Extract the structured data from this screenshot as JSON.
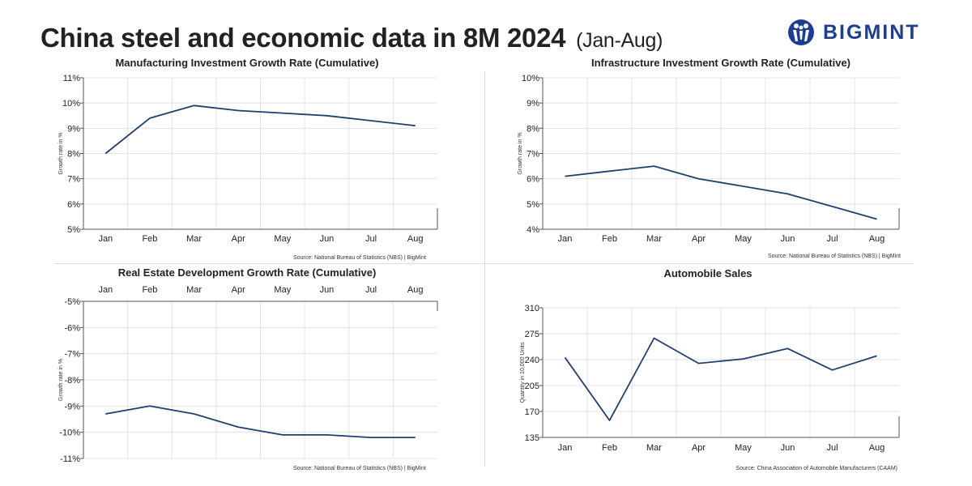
{
  "header": {
    "title": "China steel and economic data in 8M 2024",
    "subtitle": "(Jan-Aug)"
  },
  "logo": {
    "text": "BIGMINT",
    "icon": "bigmint-logo-icon",
    "color": "#1c3f94"
  },
  "line_color": "#1f3f6e",
  "chart_data": [
    {
      "type": "line",
      "title": "Manufacturing Investment Growth Rate (Cumulative)",
      "ylabel": "Growth rate in %",
      "categories": [
        "Jan",
        "Feb",
        "Mar",
        "Apr",
        "May",
        "Jun",
        "Jul",
        "Aug"
      ],
      "values": [
        8.0,
        9.4,
        9.9,
        9.7,
        9.6,
        9.5,
        9.3,
        9.1
      ],
      "ylim": [
        5,
        11
      ],
      "yticks": [
        "5%",
        "6%",
        "7%",
        "8%",
        "9%",
        "10%",
        "11%"
      ],
      "grid": true,
      "source": "Source: National Bureau of Statistics (NBS) |  BigMint"
    },
    {
      "type": "line",
      "title": "Infrastructure Investment Growth Rate (Cumulative)",
      "ylabel": "Growth rate in %",
      "categories": [
        "Jan",
        "Feb",
        "Mar",
        "Apr",
        "May",
        "Jun",
        "Jul",
        "Aug"
      ],
      "values": [
        6.1,
        6.3,
        6.5,
        6.0,
        5.7,
        5.4,
        4.9,
        4.4
      ],
      "ylim": [
        4,
        10
      ],
      "yticks": [
        "4%",
        "5%",
        "6%",
        "7%",
        "8%",
        "9%",
        "10%"
      ],
      "grid": true,
      "source": "Source: National Bureau of Statistics (NBS) |  BigMint"
    },
    {
      "type": "line",
      "title": "Real Estate Development Growth Rate (Cumulative)",
      "ylabel": "Growth rate in %",
      "categories": [
        "Jan",
        "Feb",
        "Mar",
        "Apr",
        "May",
        "Jun",
        "Jul",
        "Aug"
      ],
      "values": [
        -9.3,
        -9.0,
        -9.3,
        -9.8,
        -10.1,
        -10.1,
        -10.2,
        -10.2
      ],
      "ylim": [
        -11,
        -5
      ],
      "yticks": [
        "-11%",
        "-10%",
        "-9%",
        "-8%",
        "-7%",
        "-6%",
        "-5%"
      ],
      "grid": true,
      "source": "Source: National Bureau of Statistics (NBS) |  BigMint"
    },
    {
      "type": "line",
      "title": "Automobile Sales",
      "ylabel": "Quantity in 10,000 Units",
      "categories": [
        "Jan",
        "Feb",
        "Mar",
        "Apr",
        "May",
        "Jun",
        "Jul",
        "Aug"
      ],
      "values": [
        243,
        158,
        269,
        235,
        241,
        255,
        226,
        245
      ],
      "ylim": [
        135,
        310
      ],
      "yticks": [
        "135",
        "170",
        "205",
        "240",
        "275",
        "310"
      ],
      "grid": true,
      "source": "Source: China Association of Automobile Manufacturers (CAAM)"
    }
  ]
}
